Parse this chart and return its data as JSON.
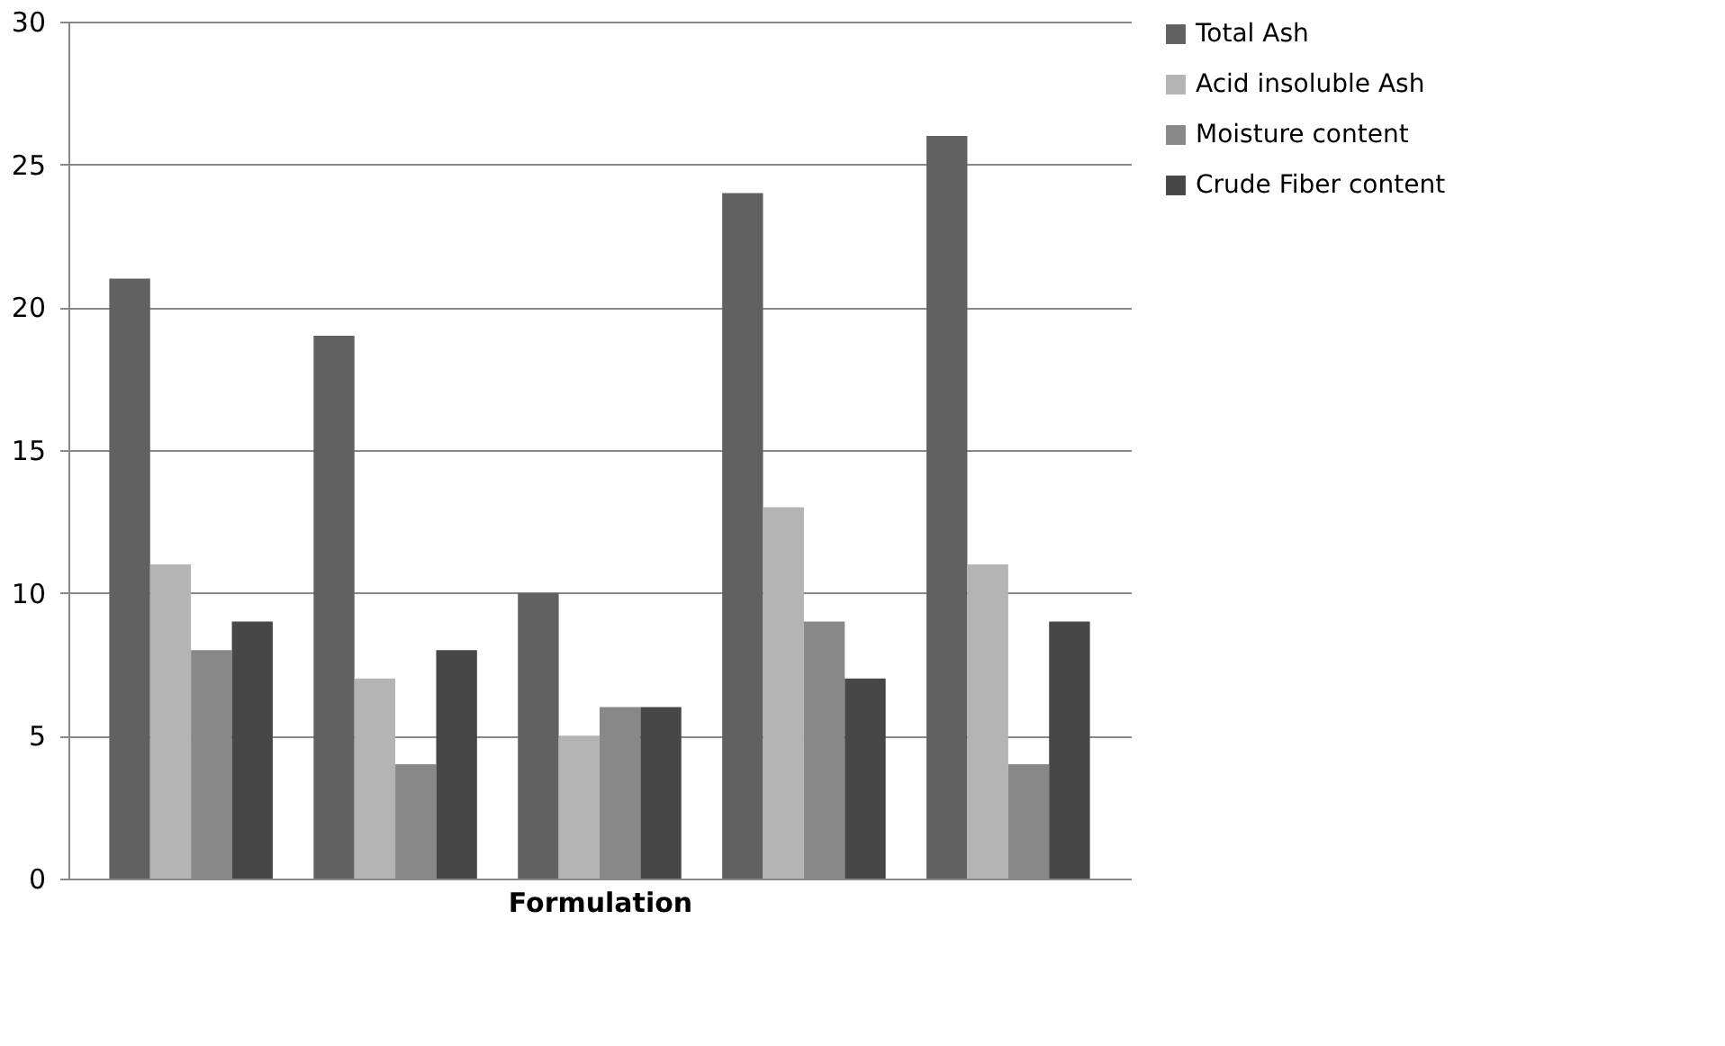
{
  "chart_data": {
    "type": "bar",
    "xlabel": "Formulation",
    "categories": [
      null,
      null,
      null,
      null,
      null
    ],
    "series": [
      {
        "name": "Total Ash",
        "color": "#616161",
        "values": [
          21,
          19,
          10,
          24,
          26
        ]
      },
      {
        "name": "Acid insoluble Ash",
        "color": "#b4b4b4",
        "values": [
          11,
          7,
          5,
          13,
          11
        ]
      },
      {
        "name": "Moisture content",
        "color": "#888888",
        "values": [
          8,
          4,
          6,
          9,
          4
        ]
      },
      {
        "name": "Crude Fiber content",
        "color": "#474747",
        "values": [
          9,
          8,
          6,
          7,
          9
        ]
      }
    ],
    "ylim": [
      0,
      30
    ],
    "yticks": [
      0,
      5,
      10,
      15,
      20,
      25,
      30
    ],
    "grid": "y",
    "legend": "right",
    "tick_labels": "y"
  }
}
